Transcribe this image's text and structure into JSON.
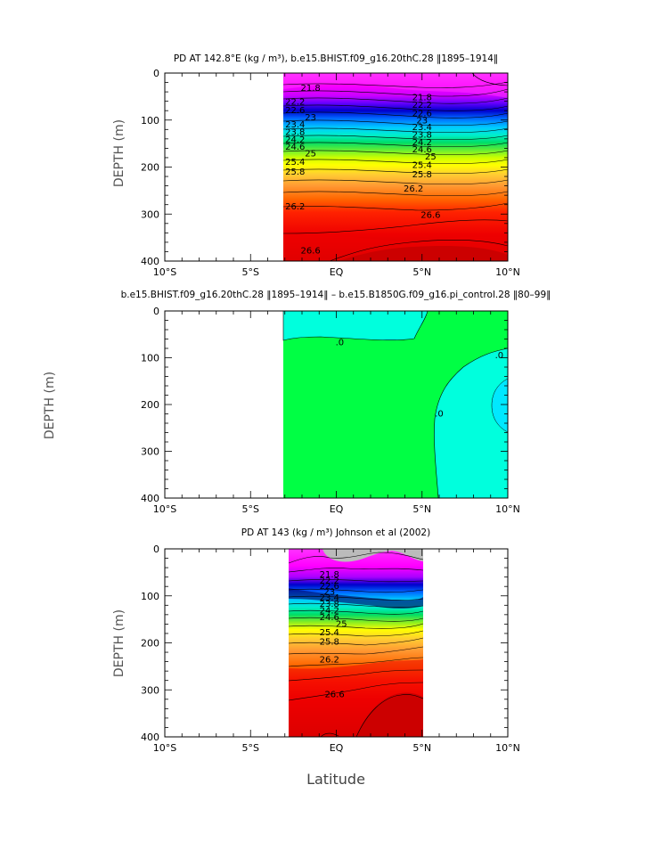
{
  "x_axis_title": "Latitude",
  "chart_data": [
    {
      "type": "heatmap",
      "id": "top",
      "title": "PD AT 142.8°E (kg / m³), b.e15.BHIST.f09_g16.20thC.28 ‖1895–1914‖",
      "xlabel": "",
      "ylabel": "DEPTH (m)",
      "xlim": [
        -10,
        10
      ],
      "ylim": [
        400,
        0
      ],
      "x_ticks": [
        "10°S",
        "5°S",
        "EQ",
        "5°N",
        "10°N"
      ],
      "y_ticks": [
        "0",
        "100",
        "200",
        "300",
        "400"
      ],
      "data_x_range": [
        -3,
        10
      ],
      "fill": "stratified",
      "contour_labels": [
        {
          "text": "21.8",
          "lat": -1.5,
          "depth": 32
        },
        {
          "text": "21.8",
          "lat": 5.0,
          "depth": 52
        },
        {
          "text": "22.2",
          "lat": -2.4,
          "depth": 62
        },
        {
          "text": "22.2",
          "lat": 5.0,
          "depth": 68
        },
        {
          "text": "22.6",
          "lat": -2.4,
          "depth": 80
        },
        {
          "text": "22.6",
          "lat": 5.0,
          "depth": 86
        },
        {
          "text": "23",
          "lat": -1.5,
          "depth": 95
        },
        {
          "text": "23",
          "lat": 5.0,
          "depth": 101
        },
        {
          "text": "23.4",
          "lat": -2.4,
          "depth": 110
        },
        {
          "text": "23.4",
          "lat": 5.0,
          "depth": 116
        },
        {
          "text": "23.8",
          "lat": -2.4,
          "depth": 126
        },
        {
          "text": "23.8",
          "lat": 5.0,
          "depth": 132
        },
        {
          "text": "24.2",
          "lat": -2.4,
          "depth": 142
        },
        {
          "text": "24.2",
          "lat": 5.0,
          "depth": 148
        },
        {
          "text": "24.6",
          "lat": -2.4,
          "depth": 157
        },
        {
          "text": "24.6",
          "lat": 5.0,
          "depth": 163
        },
        {
          "text": "25",
          "lat": -1.5,
          "depth": 172
        },
        {
          "text": "25",
          "lat": 5.5,
          "depth": 178
        },
        {
          "text": "25.4",
          "lat": -2.4,
          "depth": 190
        },
        {
          "text": "25.4",
          "lat": 5.0,
          "depth": 196
        },
        {
          "text": "25.8",
          "lat": -2.4,
          "depth": 210
        },
        {
          "text": "25.8",
          "lat": 5.0,
          "depth": 216
        },
        {
          "text": "26.2",
          "lat": 4.5,
          "depth": 246
        },
        {
          "text": "26.2",
          "lat": -2.4,
          "depth": 284
        },
        {
          "text": "26.6",
          "lat": 5.5,
          "depth": 302
        },
        {
          "text": "26.6",
          "lat": -1.5,
          "depth": 378
        }
      ]
    },
    {
      "type": "heatmap",
      "id": "middle",
      "title": "b.e15.BHIST.f09_g16.20thC.28 ‖1895–1914‖ – b.e15.B1850G.f09_g16.pi_control.28 ‖80–99‖",
      "xlabel": "",
      "ylabel": "DEPTH (m)",
      "xlim": [
        -10,
        10
      ],
      "ylim": [
        400,
        0
      ],
      "x_ticks": [
        "10°S",
        "5°S",
        "EQ",
        "5°N",
        "10°N"
      ],
      "y_ticks": [
        "0",
        "100",
        "200",
        "300",
        "400"
      ],
      "data_x_range": [
        -3,
        10
      ],
      "fill": "difference",
      "contour_labels": [
        {
          "text": ".0",
          "lat": 0.2,
          "depth": 68
        },
        {
          "text": ".0",
          "lat": 9.5,
          "depth": 95
        },
        {
          "text": ".0",
          "lat": 6.0,
          "depth": 220
        }
      ]
    },
    {
      "type": "heatmap",
      "id": "bottom",
      "title": "PD AT 143 (kg / m³) Johnson et al (2002)",
      "xlabel": "Latitude",
      "ylabel": "DEPTH (m)",
      "xlim": [
        -10,
        10
      ],
      "ylim": [
        400,
        0
      ],
      "x_ticks": [
        "10°S",
        "5°S",
        "EQ",
        "5°N",
        "10°N"
      ],
      "y_ticks": [
        "0",
        "100",
        "200",
        "300",
        "400"
      ],
      "data_x_range": [
        -2.7,
        5
      ],
      "fill": "observed",
      "contour_labels": [
        {
          "text": "21.8",
          "lat": -0.4,
          "depth": 55
        },
        {
          "text": "22.2",
          "lat": -0.4,
          "depth": 68
        },
        {
          "text": "22.6",
          "lat": -0.4,
          "depth": 80
        },
        {
          "text": "23",
          "lat": -0.4,
          "depth": 92
        },
        {
          "text": "23.4",
          "lat": -0.4,
          "depth": 104
        },
        {
          "text": "23.8",
          "lat": -0.4,
          "depth": 118
        },
        {
          "text": "24.2",
          "lat": -0.4,
          "depth": 132
        },
        {
          "text": "24.6",
          "lat": -0.4,
          "depth": 146
        },
        {
          "text": "25",
          "lat": 0.3,
          "depth": 160
        },
        {
          "text": "25.4",
          "lat": -0.4,
          "depth": 178
        },
        {
          "text": "25.8",
          "lat": -0.4,
          "depth": 198
        },
        {
          "text": "26.2",
          "lat": -0.4,
          "depth": 236
        },
        {
          "text": "26.6",
          "lat": -0.1,
          "depth": 310
        }
      ]
    }
  ]
}
